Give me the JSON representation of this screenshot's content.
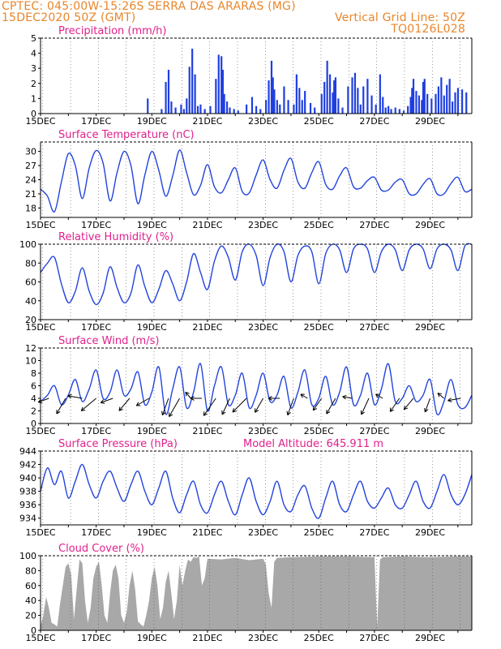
{
  "header": {
    "line1": "CPTEC:   045:00W-15:26S   SERRA DAS ARARAS (MG)",
    "line2": "15DEC2020 50Z (GMT)",
    "right1": "Vertical Grid Line: 50Z",
    "right2": "TQ0126L028"
  },
  "colors": {
    "header": "#e8862b",
    "panel_title": "#e0208c",
    "line": "#2244dd",
    "bars": "#1f3fe0",
    "cloud": "#a8a8a8",
    "arrow": "#000000"
  },
  "x_tick_labels": [
    "15DEC",
    "17DEC",
    "19DEC",
    "21DEC",
    "23DEC",
    "25DEC",
    "27DEC",
    "29DEC"
  ],
  "chart_data": [
    {
      "type": "bar",
      "title": "Precipitation (mm/h)",
      "ylim": [
        0,
        5
      ],
      "y_ticks": [
        "0",
        "1",
        "2",
        "3",
        "4",
        "5"
      ],
      "x_range_days": [
        15,
        30.5
      ],
      "x": [
        18.85,
        19.35,
        19.5,
        19.6,
        19.7,
        19.85,
        20.05,
        20.15,
        20.25,
        20.35,
        20.45,
        20.55,
        20.65,
        20.75,
        20.9,
        21.1,
        21.3,
        21.4,
        21.5,
        21.55,
        21.6,
        21.7,
        21.8,
        21.95,
        22.1,
        22.4,
        22.6,
        22.75,
        22.9,
        23.1,
        23.2,
        23.3,
        23.35,
        23.4,
        23.5,
        23.6,
        23.75,
        23.9,
        24.1,
        24.2,
        24.3,
        24.4,
        24.5,
        24.7,
        24.85,
        25.1,
        25.2,
        25.3,
        25.4,
        25.5,
        25.55,
        25.6,
        25.7,
        25.85,
        26.05,
        26.2,
        26.3,
        26.4,
        26.5,
        26.6,
        26.75,
        26.9,
        27.05,
        27.2,
        27.3,
        27.4,
        27.5,
        27.6,
        27.75,
        27.9,
        28.05,
        28.2,
        28.3,
        28.35,
        28.4,
        28.5,
        28.6,
        28.7,
        28.75,
        28.8,
        28.9,
        29.05,
        29.2,
        29.3,
        29.4,
        29.5,
        29.6,
        29.7,
        29.8,
        29.9,
        30.0,
        30.15,
        30.3
      ],
      "values": [
        1.0,
        0.3,
        2.1,
        2.9,
        0.8,
        0.4,
        0.6,
        0.3,
        1.0,
        3.1,
        4.3,
        2.6,
        0.5,
        0.6,
        0.3,
        0.5,
        2.3,
        3.9,
        3.8,
        2.9,
        1.3,
        0.8,
        0.4,
        0.3,
        0.2,
        0.6,
        1.1,
        0.5,
        0.3,
        0.9,
        2.2,
        3.5,
        2.4,
        1.6,
        0.9,
        0.6,
        1.8,
        0.9,
        0.6,
        2.6,
        1.7,
        0.9,
        1.5,
        0.7,
        0.4,
        1.3,
        2.1,
        3.5,
        2.6,
        1.4,
        2.2,
        2.4,
        1.0,
        0.4,
        1.8,
        2.4,
        2.7,
        1.7,
        0.6,
        1.8,
        2.3,
        1.2,
        0.6,
        2.6,
        1.1,
        0.4,
        0.5,
        0.3,
        0.4,
        0.3,
        0.2,
        0.5,
        1.1,
        1.7,
        2.3,
        1.5,
        1.2,
        0.9,
        2.1,
        2.3,
        1.3,
        1.0,
        1.3,
        1.8,
        2.4,
        1.2,
        1.9,
        2.3,
        0.8,
        1.4,
        1.7,
        1.6,
        1.4
      ]
    },
    {
      "type": "line",
      "title": "Surface Temperature (nC)",
      "ylim": [
        16,
        32
      ],
      "y_ticks": [
        "18",
        "21",
        "24",
        "27",
        "30"
      ],
      "x": [
        15.0,
        15.25,
        15.5,
        15.75,
        16.0,
        16.25,
        16.5,
        16.75,
        17.0,
        17.25,
        17.5,
        17.75,
        18.0,
        18.25,
        18.5,
        18.75,
        19.0,
        19.25,
        19.5,
        19.75,
        20.0,
        20.25,
        20.5,
        20.75,
        21.0,
        21.25,
        21.5,
        21.75,
        22.0,
        22.25,
        22.5,
        22.75,
        23.0,
        23.25,
        23.5,
        23.75,
        24.0,
        24.25,
        24.5,
        24.75,
        25.0,
        25.25,
        25.5,
        25.75,
        26.0,
        26.25,
        26.5,
        26.75,
        27.0,
        27.25,
        27.5,
        27.75,
        28.0,
        28.25,
        28.5,
        28.75,
        29.0,
        29.25,
        29.5,
        29.75,
        30.0,
        30.25,
        30.5
      ],
      "values": [
        22.0,
        20.5,
        17.2,
        23.5,
        29.5,
        27.0,
        20.0,
        26.5,
        30.2,
        27.5,
        19.5,
        25.5,
        30.0,
        27.0,
        18.9,
        25.0,
        30.0,
        26.0,
        20.5,
        24.8,
        30.3,
        25.5,
        20.8,
        22.8,
        27.2,
        22.5,
        21.2,
        24.0,
        26.5,
        21.5,
        21.2,
        25.0,
        28.2,
        24.0,
        22.2,
        26.0,
        28.5,
        23.5,
        22.2,
        25.5,
        27.8,
        23.0,
        22.0,
        24.8,
        26.5,
        22.5,
        22.2,
        23.8,
        24.5,
        21.8,
        21.8,
        23.5,
        24.0,
        21.0,
        21.0,
        23.0,
        24.2,
        21.0,
        21.0,
        23.2,
        24.5,
        21.5,
        22.0
      ]
    },
    {
      "type": "line",
      "title": "Relative Humidity (%)",
      "ylim": [
        20,
        100
      ],
      "y_ticks": [
        "20",
        "40",
        "60",
        "80",
        "100"
      ],
      "x": [
        15.0,
        15.25,
        15.5,
        15.75,
        16.0,
        16.25,
        16.5,
        16.75,
        17.0,
        17.25,
        17.5,
        17.75,
        18.0,
        18.25,
        18.5,
        18.75,
        19.0,
        19.25,
        19.5,
        19.75,
        20.0,
        20.25,
        20.5,
        20.75,
        21.0,
        21.25,
        21.5,
        21.75,
        22.0,
        22.25,
        22.5,
        22.75,
        23.0,
        23.25,
        23.5,
        23.75,
        24.0,
        24.25,
        24.5,
        24.75,
        25.0,
        25.25,
        25.5,
        25.75,
        26.0,
        26.25,
        26.5,
        26.75,
        27.0,
        27.25,
        27.5,
        27.75,
        28.0,
        28.25,
        28.5,
        28.75,
        29.0,
        29.25,
        29.5,
        29.75,
        30.0,
        30.25,
        30.5
      ],
      "values": [
        70,
        80,
        86,
        58,
        38,
        50,
        75,
        50,
        36,
        48,
        76,
        54,
        38,
        48,
        78,
        55,
        38,
        52,
        72,
        58,
        40,
        60,
        90,
        70,
        52,
        82,
        98,
        86,
        62,
        92,
        100,
        88,
        56,
        86,
        100,
        92,
        60,
        88,
        98,
        92,
        58,
        90,
        100,
        94,
        70,
        95,
        100,
        95,
        70,
        92,
        100,
        94,
        72,
        94,
        100,
        95,
        74,
        95,
        100,
        94,
        72,
        98,
        100
      ]
    },
    {
      "type": "line",
      "title": "Surface Wind (m/s)",
      "ylim": [
        0,
        12
      ],
      "y_ticks": [
        "0",
        "2",
        "4",
        "6",
        "8",
        "10",
        "12"
      ],
      "x": [
        15.0,
        15.25,
        15.5,
        15.75,
        16.0,
        16.25,
        16.5,
        16.75,
        17.0,
        17.25,
        17.5,
        17.75,
        18.0,
        18.25,
        18.5,
        18.75,
        19.0,
        19.25,
        19.5,
        19.75,
        20.0,
        20.25,
        20.5,
        20.75,
        21.0,
        21.25,
        21.5,
        21.75,
        22.0,
        22.25,
        22.5,
        22.75,
        23.0,
        23.25,
        23.5,
        23.75,
        24.0,
        24.25,
        24.5,
        24.75,
        25.0,
        25.25,
        25.5,
        25.75,
        26.0,
        26.25,
        26.5,
        26.75,
        27.0,
        27.25,
        27.5,
        27.75,
        28.0,
        28.25,
        28.5,
        28.75,
        29.0,
        29.25,
        29.5,
        29.75,
        30.0,
        30.25,
        30.5
      ],
      "values": [
        3.5,
        4.5,
        6.0,
        3.0,
        4.5,
        7.0,
        3.5,
        5.5,
        8.5,
        4.0,
        5.0,
        8.5,
        4.5,
        5.5,
        8.2,
        3.0,
        5.0,
        9.0,
        1.5,
        5.5,
        9.0,
        2.5,
        5.0,
        9.5,
        2.0,
        6.0,
        9.0,
        3.0,
        4.5,
        8.0,
        2.5,
        4.5,
        8.0,
        3.5,
        4.5,
        7.5,
        2.5,
        5.0,
        8.5,
        3.0,
        4.0,
        7.5,
        3.0,
        5.0,
        9.0,
        3.0,
        4.5,
        8.0,
        3.0,
        5.5,
        9.5,
        3.5,
        4.0,
        6.0,
        3.5,
        4.5,
        7.0,
        1.5,
        3.5,
        7.0,
        3.0,
        2.5,
        4.5
      ]
    },
    {
      "type": "line",
      "title": "Surface Pressure (hPa)",
      "annotation": "Model Altitude: 645.911 m",
      "ylim": [
        933,
        944
      ],
      "y_ticks": [
        "934",
        "936",
        "938",
        "940",
        "942",
        "944"
      ],
      "x": [
        15.0,
        15.25,
        15.5,
        15.75,
        16.0,
        16.25,
        16.5,
        16.75,
        17.0,
        17.25,
        17.5,
        17.75,
        18.0,
        18.25,
        18.5,
        18.75,
        19.0,
        19.25,
        19.5,
        19.75,
        20.0,
        20.25,
        20.5,
        20.75,
        21.0,
        21.25,
        21.5,
        21.75,
        22.0,
        22.25,
        22.5,
        22.75,
        23.0,
        23.25,
        23.5,
        23.75,
        24.0,
        24.25,
        24.5,
        24.75,
        25.0,
        25.25,
        25.5,
        25.75,
        26.0,
        26.25,
        26.5,
        26.75,
        27.0,
        27.25,
        27.5,
        27.75,
        28.0,
        28.25,
        28.5,
        28.75,
        29.0,
        29.25,
        29.5,
        29.75,
        30.0,
        30.25,
        30.5
      ],
      "values": [
        938.0,
        941.5,
        939.0,
        941.0,
        937.0,
        939.5,
        942.0,
        939.0,
        937.0,
        939.5,
        941.0,
        938.5,
        936.5,
        939.0,
        941.0,
        938.0,
        936.0,
        938.5,
        941.0,
        937.0,
        934.8,
        937.5,
        939.5,
        936.0,
        934.8,
        937.5,
        939.5,
        936.5,
        934.5,
        937.5,
        940.0,
        936.5,
        934.5,
        936.5,
        939.5,
        936.0,
        935.0,
        937.5,
        938.8,
        935.5,
        934.0,
        937.0,
        939.5,
        936.0,
        935.0,
        937.5,
        939.5,
        936.5,
        935.5,
        937.0,
        938.5,
        936.0,
        935.5,
        937.5,
        939.5,
        936.5,
        935.5,
        938.0,
        940.5,
        937.5,
        936.0,
        937.5,
        940.5
      ]
    },
    {
      "type": "area",
      "title": "Cloud Cover (%)",
      "ylim": [
        0,
        100
      ],
      "y_ticks": [
        "0",
        "20",
        "40",
        "60",
        "80",
        "100"
      ],
      "x": [
        15.0,
        15.1,
        15.2,
        15.3,
        15.4,
        15.5,
        15.6,
        15.7,
        15.8,
        15.9,
        16.0,
        16.1,
        16.2,
        16.3,
        16.4,
        16.5,
        16.6,
        16.7,
        16.8,
        16.9,
        17.0,
        17.1,
        17.2,
        17.3,
        17.4,
        17.5,
        17.6,
        17.7,
        17.8,
        17.9,
        18.0,
        18.1,
        18.2,
        18.3,
        18.4,
        18.5,
        18.6,
        18.7,
        18.8,
        18.9,
        19.0,
        19.1,
        19.2,
        19.3,
        19.4,
        19.5,
        19.6,
        19.7,
        19.8,
        19.9,
        20.0,
        20.1,
        20.2,
        20.3,
        20.4,
        20.5,
        20.6,
        20.7,
        20.8,
        20.9,
        21.0,
        21.5,
        22.0,
        22.5,
        23.0,
        23.1,
        23.2,
        23.3,
        23.4,
        23.5,
        24.0,
        25.0,
        26.0,
        27.0,
        27.1,
        27.2,
        27.3,
        28.0,
        29.0,
        30.0,
        30.5
      ],
      "values": [
        5,
        20,
        45,
        30,
        10,
        8,
        5,
        35,
        60,
        85,
        90,
        75,
        15,
        55,
        95,
        90,
        40,
        10,
        30,
        70,
        85,
        92,
        60,
        20,
        10,
        50,
        80,
        88,
        70,
        20,
        10,
        25,
        60,
        80,
        55,
        12,
        8,
        5,
        20,
        40,
        70,
        85,
        60,
        15,
        30,
        65,
        80,
        50,
        15,
        40,
        88,
        60,
        80,
        95,
        92,
        98,
        97,
        99,
        60,
        70,
        96,
        95,
        97,
        94,
        96,
        88,
        50,
        30,
        92,
        97,
        98,
        99,
        99,
        98,
        5,
        95,
        98,
        99,
        98,
        99,
        99
      ]
    }
  ],
  "wind_vectors": {
    "note": "direction arrows, deg wind blowing toward measured clockwise from north",
    "x": [
      15.3,
      15.9,
      16.5,
      17.0,
      17.6,
      18.2,
      18.9,
      19.6,
      20.0,
      20.4,
      20.8,
      21.3,
      21.8,
      22.4,
      23.0,
      23.6,
      24.1,
      24.6,
      25.1,
      25.6,
      26.2,
      26.8,
      27.3,
      27.9,
      28.4,
      29.0,
      29.5,
      30.1
    ],
    "dir_deg": [
      250,
      210,
      280,
      230,
      250,
      220,
      240,
      200,
      210,
      320,
      270,
      215,
      205,
      225,
      210,
      270,
      200,
      300,
      215,
      210,
      280,
      205,
      300,
      215,
      220,
      200,
      310,
      260
    ],
    "len": [
      14,
      22,
      18,
      24,
      16,
      20,
      18,
      22,
      26,
      10,
      14,
      26,
      22,
      24,
      20,
      14,
      22,
      10,
      18,
      22,
      12,
      22,
      10,
      20,
      18,
      18,
      10,
      16
    ]
  }
}
